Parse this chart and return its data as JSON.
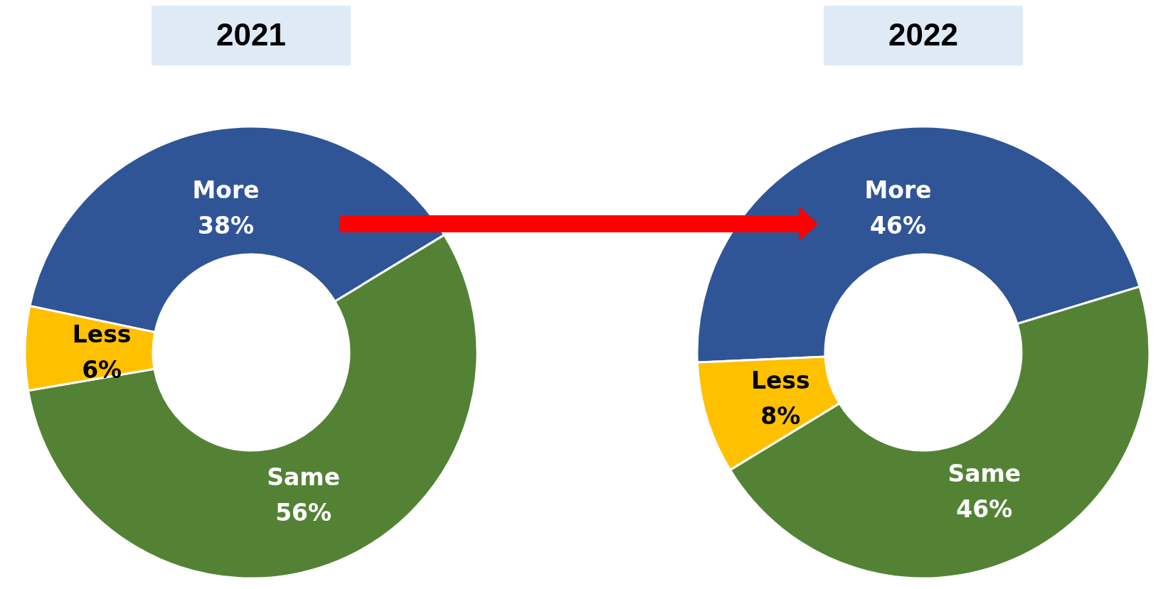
{
  "chart_data": [
    {
      "type": "donut",
      "title": "2021",
      "categories": [
        "More",
        "Same",
        "Less"
      ],
      "values": [
        38,
        56,
        6
      ],
      "colors": [
        "#2f5597",
        "#548235",
        "#ffc000"
      ],
      "value_labels": [
        "38%",
        "56%",
        "6%"
      ]
    },
    {
      "type": "donut",
      "title": "2022",
      "categories": [
        "More",
        "Same",
        "Less"
      ],
      "values": [
        46,
        46,
        8
      ],
      "colors": [
        "#2f5597",
        "#548235",
        "#ffc000"
      ],
      "value_labels": [
        "46%",
        "46%",
        "8%"
      ]
    }
  ]
}
